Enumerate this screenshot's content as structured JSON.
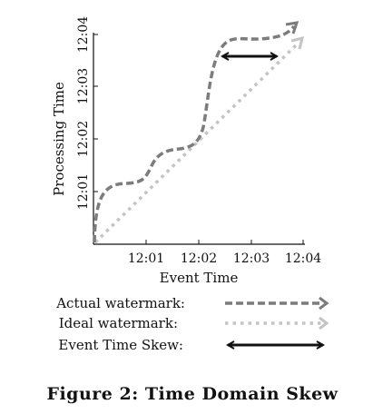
{
  "diagram": {
    "x_axis": {
      "label": "Event Time",
      "ticks": [
        "12:01",
        "12:02",
        "12:03",
        "12:04"
      ]
    },
    "y_axis": {
      "label": "Processing Time",
      "ticks": [
        "12:01",
        "12:02",
        "12:03",
        "12:04"
      ]
    },
    "legend": [
      {
        "label": "Actual watermark:",
        "style": "dashed",
        "color": "#808080"
      },
      {
        "label": "Ideal watermark:",
        "style": "dotted",
        "color": "#c0c0c0"
      },
      {
        "label": "Event Time Skew:",
        "style": "solid-double-arrow",
        "color": "#111111"
      }
    ],
    "caption": "Figure 2: Time Domain Skew"
  }
}
